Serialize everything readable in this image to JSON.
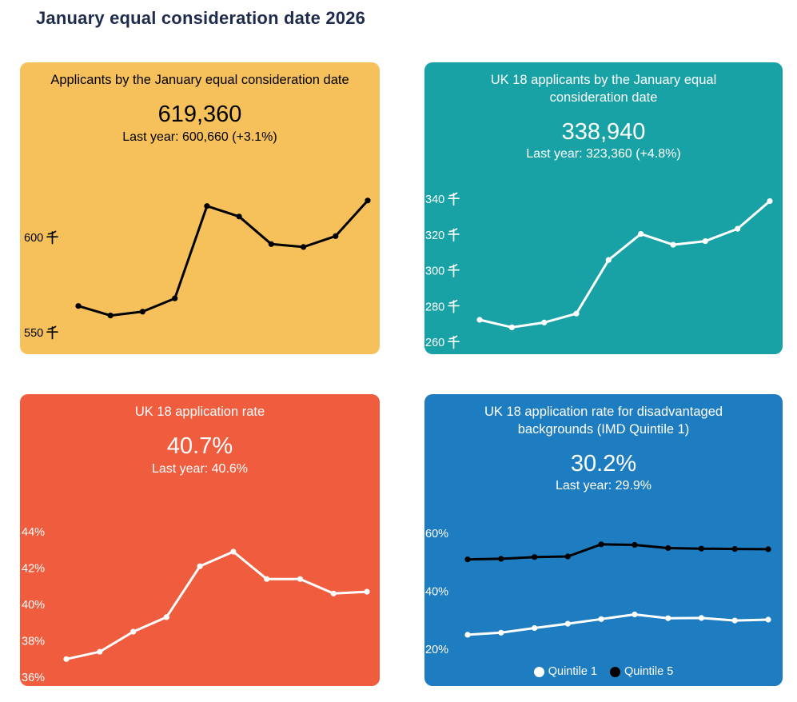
{
  "page_title": "January equal consideration date 2026",
  "colors": {
    "page_background": "#FFFFFF",
    "title_text": "#1F2B4D",
    "card_yellow": "#F6C05A",
    "card_teal": "#18A2A6",
    "card_red": "#F05C3E",
    "card_blue": "#1E7CC1"
  },
  "cards": [
    {
      "title": "Applicants by the January equal consideration date",
      "headline": "619,360",
      "last_year": "Last year: 600,660 (+3.1%)",
      "bg": "#F6C05A",
      "text": "#000000"
    },
    {
      "title": "UK 18 applicants by the January equal consideration date",
      "headline": "338,940",
      "last_year": "Last year: 323,360 (+4.8%)",
      "bg": "#18A2A6",
      "text": "#FFFFFF"
    },
    {
      "title": "UK 18 application rate",
      "headline": "40.7%",
      "last_year": "Last year: 40.6%",
      "bg": "#F05C3E",
      "text": "#FFFFFF"
    },
    {
      "title": "UK 18 application rate for disadvantaged backgrounds (IMD Quintile 1)",
      "headline": "30.2%",
      "last_year": "Last year: 29.9%",
      "bg": "#1E7CC1",
      "text": "#FFFFFF"
    }
  ],
  "chart_data": [
    {
      "type": "line",
      "title": "Applicants by the January equal consideration date",
      "headline_value": "619,360",
      "subtitle": "Last year: 600,660 (+3.1%)",
      "unit": "thousands (千)",
      "line_color": "#000000",
      "values": [
        564,
        559,
        561,
        568,
        616.5,
        611,
        596.5,
        595,
        600.7,
        619.4
      ],
      "yticks": [
        {
          "value": 600,
          "label": "600 千"
        },
        {
          "value": 550,
          "label": "550 千"
        }
      ],
      "ylim": [
        543,
        628
      ],
      "grid": false,
      "legend": null
    },
    {
      "type": "line",
      "title": "UK 18 applicants by the January equal consideration date",
      "headline_value": "338,940",
      "subtitle": "Last year: 323,360 (+4.8%)",
      "unit": "thousands (千)",
      "line_color": "#FFFFFF",
      "values": [
        272.5,
        268.3,
        271,
        276,
        306,
        320.5,
        314.5,
        316.5,
        323.4,
        338.9
      ],
      "yticks": [
        {
          "value": 340,
          "label": "340 千"
        },
        {
          "value": 320,
          "label": "320 千"
        },
        {
          "value": 300,
          "label": "300 千"
        },
        {
          "value": 280,
          "label": "280 千"
        },
        {
          "value": 260,
          "label": "260 千"
        }
      ],
      "ylim": [
        257,
        346
      ],
      "grid": false,
      "legend": null
    },
    {
      "type": "line",
      "title": "UK 18 application rate",
      "headline_value": "40.7%",
      "subtitle": "Last year: 40.6%",
      "unit": "%",
      "line_color": "#FFFFFF",
      "values": [
        37.0,
        37.4,
        38.5,
        39.3,
        42.1,
        42.9,
        41.4,
        41.4,
        40.6,
        40.7
      ],
      "yticks": [
        {
          "value": 44,
          "label": "44%"
        },
        {
          "value": 42,
          "label": "42%"
        },
        {
          "value": 40,
          "label": "40%"
        },
        {
          "value": 38,
          "label": "38%"
        },
        {
          "value": 36,
          "label": "36%"
        }
      ],
      "ylim": [
        35.6,
        44.7
      ],
      "grid": false,
      "legend": null
    },
    {
      "type": "line",
      "title": "UK 18 application rate for disadvantaged backgrounds (IMD Quintile 1)",
      "headline_value": "30.2%",
      "subtitle": "Last year: 29.9%",
      "unit": "%",
      "series": [
        {
          "name": "Quintile 1",
          "color": "#FFFFFF",
          "values": [
            25.0,
            25.7,
            27.3,
            28.8,
            30.4,
            32.0,
            30.7,
            30.8,
            29.9,
            30.2
          ]
        },
        {
          "name": "Quintile 5",
          "color": "#000000",
          "values": [
            51.0,
            51.2,
            51.8,
            52.0,
            56.2,
            56.0,
            54.9,
            54.7,
            54.6,
            54.5
          ]
        }
      ],
      "yticks": [
        {
          "value": 60,
          "label": "60%"
        },
        {
          "value": 40,
          "label": "40%"
        },
        {
          "value": 20,
          "label": "20%"
        }
      ],
      "ylim": [
        15,
        64.7
      ],
      "grid": false,
      "legend": [
        "Quintile 1",
        "Quintile 5"
      ],
      "legend_position": "bottom"
    }
  ]
}
